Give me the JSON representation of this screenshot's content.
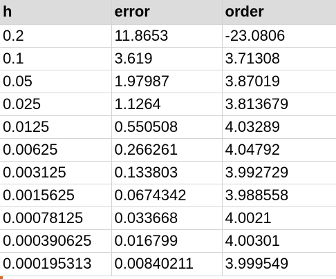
{
  "sheet": {
    "headers": [
      "h",
      "error",
      "order"
    ],
    "rows": [
      [
        "0.2",
        "11.8653",
        "-23.0806"
      ],
      [
        "0.1",
        "3.619",
        "3.71308"
      ],
      [
        "0.05",
        "1.97987",
        "3.87019"
      ],
      [
        "0.025",
        "1.1264",
        "3.813679"
      ],
      [
        "0.0125",
        "0.550508",
        "4.03289"
      ],
      [
        "0.00625",
        "0.266261",
        "4.04792"
      ],
      [
        "0.003125",
        "0.133803",
        "3.992729"
      ],
      [
        "0.0015625",
        "0.0674342",
        "3.988558"
      ],
      [
        "0.00078125",
        "0.033668",
        "4.0021"
      ],
      [
        "0.000390625",
        "0.016799",
        "4.00301"
      ],
      [
        "0.000195313",
        "0.00840211",
        "3.999549"
      ]
    ]
  },
  "colors": {
    "header_bg": "#dcdcdc",
    "grid_line": "#d4d4d4",
    "corner_mark": "#e06c1c"
  }
}
